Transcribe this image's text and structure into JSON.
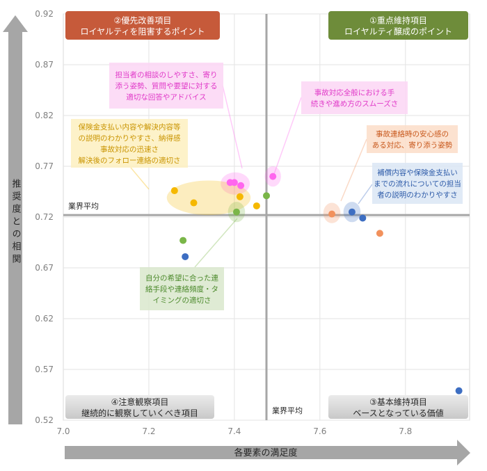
{
  "chart_data": {
    "type": "scatter",
    "xlabel": "各要素の満足度",
    "ylabel": "推奨度との相関",
    "xlim": [
      7.0,
      7.95
    ],
    "ylim": [
      0.52,
      0.92
    ],
    "x_ticks": [
      "7.0",
      "7.2",
      "7.4",
      "7.6",
      "7.8"
    ],
    "y_ticks": [
      "0.92",
      "0.87",
      "0.82",
      "0.77",
      "0.72",
      "0.67",
      "0.62",
      "0.57",
      "0.52"
    ],
    "grid": true,
    "reference_lines": {
      "x": {
        "value": 7.475,
        "label": "業界平均"
      },
      "y": {
        "value": 0.722,
        "label": "業界平均"
      }
    },
    "quadrants": [
      {
        "position": "top-left",
        "line1": "②優先改善項目",
        "line2": "ロイヤルティを阻害するポイント",
        "color": "#c65a3a"
      },
      {
        "position": "top-right",
        "line1": "①重点維持項目",
        "line2": "ロイヤルティ醸成のポイント",
        "color": "#6e8c3a"
      },
      {
        "position": "bottom-left",
        "line1": "④注意観察項目",
        "line2": "継続的に観察していくべき項目",
        "color": "#d4d4d4"
      },
      {
        "position": "bottom-right",
        "line1": "③基本維持項目",
        "line2": "ベースとなっている価値",
        "color": "#d4d4d4"
      }
    ],
    "points": [
      {
        "x": 7.39,
        "y": 0.754,
        "color": "#ff66ee"
      },
      {
        "x": 7.4,
        "y": 0.754,
        "color": "#ff66ee"
      },
      {
        "x": 7.415,
        "y": 0.751,
        "color": "#ff66ee"
      },
      {
        "x": 7.49,
        "y": 0.76,
        "color": "#ff66ee"
      },
      {
        "x": 7.26,
        "y": 0.746,
        "color": "#f5b800"
      },
      {
        "x": 7.305,
        "y": 0.734,
        "color": "#f5b800"
      },
      {
        "x": 7.413,
        "y": 0.74,
        "color": "#f5b800"
      },
      {
        "x": 7.452,
        "y": 0.731,
        "color": "#f5b800"
      },
      {
        "x": 7.405,
        "y": 0.725,
        "color": "#7ab648"
      },
      {
        "x": 7.475,
        "y": 0.741,
        "color": "#7ab648"
      },
      {
        "x": 7.28,
        "y": 0.697,
        "color": "#7ab648"
      },
      {
        "x": 7.285,
        "y": 0.681,
        "color": "#3d6ec2"
      },
      {
        "x": 7.628,
        "y": 0.723,
        "color": "#f2915c"
      },
      {
        "x": 7.74,
        "y": 0.704,
        "color": "#f2915c"
      },
      {
        "x": 7.675,
        "y": 0.725,
        "color": "#3d6ec2"
      },
      {
        "x": 7.7,
        "y": 0.719,
        "color": "#3d6ec2"
      },
      {
        "x": 7.925,
        "y": 0.549,
        "color": "#3d6ec2"
      }
    ],
    "highlights": [
      {
        "cx": 7.402,
        "cy": 0.753,
        "rx": 0.034,
        "ry": 0.011,
        "color": "#ff66ee"
      },
      {
        "cx": 7.49,
        "cy": 0.76,
        "rx": 0.019,
        "ry": 0.01,
        "color": "#ff66ee"
      },
      {
        "cx": 7.34,
        "cy": 0.739,
        "rx": 0.098,
        "ry": 0.017,
        "color": "#f5b800"
      },
      {
        "cx": 7.405,
        "cy": 0.725,
        "rx": 0.02,
        "ry": 0.01,
        "color": "#7ab648"
      },
      {
        "cx": 7.628,
        "cy": 0.724,
        "rx": 0.02,
        "ry": 0.01,
        "color": "#f2915c"
      },
      {
        "cx": 7.675,
        "cy": 0.725,
        "rx": 0.02,
        "ry": 0.01,
        "color": "#3d6ec2"
      }
    ],
    "annotations": [
      {
        "lines": [
          "担当者の相談のしやすさ、寄り",
          "添う姿勢、質問や要望に対する",
          "適切な回答やアドバイス"
        ],
        "color": "#ff66ee",
        "fill": "#fcd6f4",
        "text_color": "#e038c8"
      },
      {
        "lines": [
          "事故対応全般における手",
          "続きや進め方のスムーズさ"
        ],
        "color": "#ff66ee",
        "fill": "#fcd6f4",
        "text_color": "#e038c8"
      },
      {
        "lines": [
          "保険金支払い内容や解決内容等",
          "の説明のわかりやすさ、納得感",
          "事故対応の迅速さ",
          "解決後のフォロー連絡の適切さ"
        ],
        "color": "#f5b800",
        "fill": "#fdf0c0",
        "text_color": "#c99400"
      },
      {
        "lines": [
          "事故連絡時の安心感の",
          "ある対応、寄り添う姿勢"
        ],
        "color": "#f2915c",
        "fill": "#fbddc8",
        "text_color": "#c8581c"
      },
      {
        "lines": [
          "補償内容や保険金支払い",
          "までの流れについての担当",
          "者の説明のわかりやすさ"
        ],
        "color": "#3d6ec2",
        "fill": "#dbe6f4",
        "text_color": "#2c5aa8"
      },
      {
        "lines": [
          "自分の希望に合った連",
          "絡手段や連絡頻度・タ",
          "イミングの適切さ"
        ],
        "color": "#7ab648",
        "fill": "#d9e8cc",
        "text_color": "#4c8a2c"
      }
    ]
  }
}
